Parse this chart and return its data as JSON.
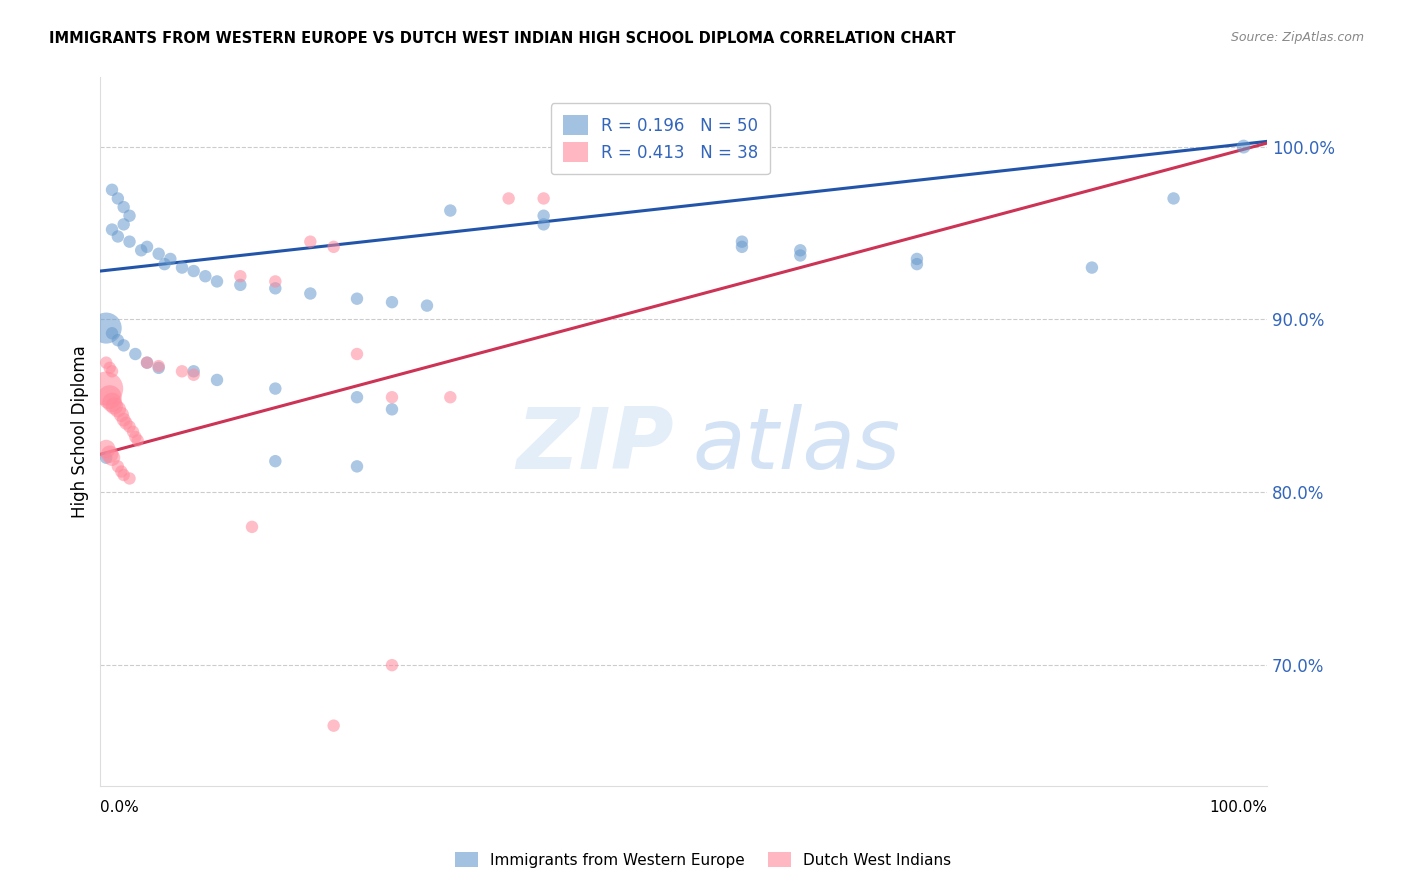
{
  "title": "IMMIGRANTS FROM WESTERN EUROPE VS DUTCH WEST INDIAN HIGH SCHOOL DIPLOMA CORRELATION CHART",
  "source": "Source: ZipAtlas.com",
  "ylabel": "High School Diploma",
  "legend1_label": "Immigrants from Western Europe",
  "legend2_label": "Dutch West Indians",
  "R_blue": 0.196,
  "N_blue": 50,
  "R_pink": 0.413,
  "N_pink": 38,
  "ytick_labels": [
    "70.0%",
    "80.0%",
    "90.0%",
    "100.0%"
  ],
  "ytick_values": [
    0.7,
    0.8,
    0.9,
    1.0
  ],
  "blue_color": "#6699CC",
  "pink_color": "#FF8899",
  "blue_line_color": "#2255AA",
  "pink_line_color": "#CC3355",
  "blue_dots_x": [
    0.01,
    0.015,
    0.02,
    0.025,
    0.02,
    0.01,
    0.015,
    0.025,
    0.035,
    0.04,
    0.05,
    0.06,
    0.055,
    0.07,
    0.08,
    0.09,
    0.1,
    0.12,
    0.15,
    0.18,
    0.22,
    0.25,
    0.28,
    0.3,
    0.005,
    0.01,
    0.015,
    0.02,
    0.03,
    0.04,
    0.05,
    0.08,
    0.1,
    0.15,
    0.22,
    0.25,
    0.005,
    0.15,
    0.22,
    0.38,
    0.38,
    0.55,
    0.55,
    0.6,
    0.6,
    0.7,
    0.7,
    0.85,
    0.92,
    0.98
  ],
  "blue_dots_y": [
    0.975,
    0.97,
    0.965,
    0.96,
    0.955,
    0.952,
    0.948,
    0.945,
    0.94,
    0.942,
    0.938,
    0.935,
    0.932,
    0.93,
    0.928,
    0.925,
    0.922,
    0.92,
    0.918,
    0.915,
    0.912,
    0.91,
    0.908,
    0.963,
    0.895,
    0.892,
    0.888,
    0.885,
    0.88,
    0.875,
    0.872,
    0.87,
    0.865,
    0.86,
    0.855,
    0.848,
    0.82,
    0.818,
    0.815,
    0.96,
    0.955,
    0.945,
    0.942,
    0.94,
    0.937,
    0.935,
    0.932,
    0.93,
    0.97,
    1.0
  ],
  "blue_dots_s": [
    80,
    80,
    80,
    80,
    80,
    80,
    80,
    80,
    80,
    80,
    80,
    80,
    80,
    80,
    80,
    80,
    80,
    80,
    80,
    80,
    80,
    80,
    80,
    80,
    500,
    80,
    80,
    80,
    80,
    80,
    80,
    80,
    80,
    80,
    80,
    80,
    80,
    80,
    80,
    80,
    80,
    80,
    80,
    80,
    80,
    80,
    80,
    80,
    80,
    100
  ],
  "pink_dots_x": [
    0.005,
    0.008,
    0.01,
    0.012,
    0.015,
    0.018,
    0.02,
    0.022,
    0.025,
    0.028,
    0.03,
    0.032,
    0.005,
    0.008,
    0.01,
    0.015,
    0.018,
    0.02,
    0.025,
    0.005,
    0.008,
    0.01,
    0.04,
    0.05,
    0.07,
    0.08,
    0.12,
    0.15,
    0.18,
    0.2,
    0.22,
    0.25,
    0.3,
    0.35,
    0.38,
    0.13,
    0.25,
    0.2
  ],
  "pink_dots_y": [
    0.86,
    0.855,
    0.852,
    0.85,
    0.848,
    0.845,
    0.842,
    0.84,
    0.838,
    0.835,
    0.832,
    0.83,
    0.825,
    0.822,
    0.82,
    0.815,
    0.812,
    0.81,
    0.808,
    0.875,
    0.872,
    0.87,
    0.875,
    0.873,
    0.87,
    0.868,
    0.925,
    0.922,
    0.945,
    0.942,
    0.88,
    0.855,
    0.855,
    0.97,
    0.97,
    0.78,
    0.7,
    0.665
  ],
  "pink_dots_s": [
    600,
    300,
    200,
    160,
    140,
    120,
    100,
    90,
    80,
    80,
    80,
    80,
    180,
    160,
    140,
    80,
    80,
    80,
    80,
    80,
    80,
    80,
    80,
    80,
    80,
    80,
    80,
    80,
    80,
    80,
    80,
    80,
    80,
    80,
    80,
    80,
    80,
    80
  ],
  "blue_trendline_y_start": 0.928,
  "blue_trendline_y_end": 1.003,
  "pink_trendline_y_start": 0.822,
  "pink_trendline_y_end": 1.002,
  "xlim": [
    0.0,
    1.0
  ],
  "ylim": [
    0.63,
    1.04
  ]
}
